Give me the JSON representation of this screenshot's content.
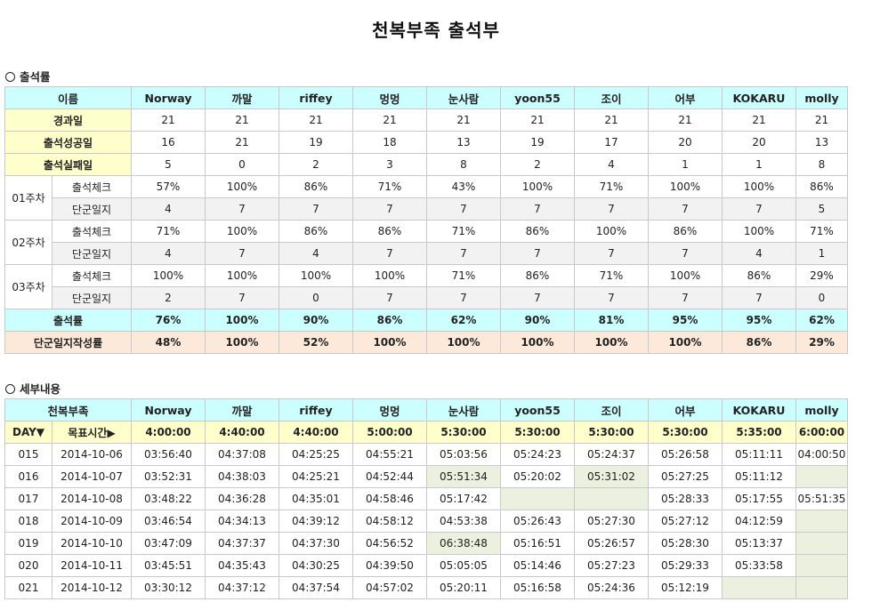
{
  "title": "천복부족 출석부",
  "section1": "출석률",
  "section2": "세부내용",
  "members": [
    "Norway",
    "까말",
    "riffey",
    "멍멍",
    "눈사람",
    "yoon55",
    "조이",
    "어부",
    "KOKARU",
    "molly"
  ],
  "summary": {
    "name_header": "이름",
    "rows_top": [
      {
        "label": "경과일",
        "values": [
          "21",
          "21",
          "21",
          "21",
          "21",
          "21",
          "21",
          "21",
          "21",
          "21"
        ]
      },
      {
        "label": "출석성공일",
        "values": [
          "16",
          "21",
          "19",
          "18",
          "13",
          "19",
          "17",
          "20",
          "20",
          "13"
        ]
      },
      {
        "label": "출석실패일",
        "values": [
          "5",
          "0",
          "2",
          "3",
          "8",
          "2",
          "4",
          "1",
          "1",
          "8"
        ]
      }
    ],
    "weeks": [
      {
        "label": "01주차",
        "check_label": "출석체크",
        "check": [
          "57%",
          "100%",
          "86%",
          "71%",
          "43%",
          "100%",
          "71%",
          "100%",
          "100%",
          "86%"
        ],
        "log_label": "단군일지",
        "log": [
          "4",
          "7",
          "7",
          "7",
          "7",
          "7",
          "7",
          "7",
          "7",
          "5"
        ]
      },
      {
        "label": "02주차",
        "check_label": "출석체크",
        "check": [
          "71%",
          "100%",
          "86%",
          "86%",
          "71%",
          "86%",
          "100%",
          "86%",
          "100%",
          "71%"
        ],
        "log_label": "단군일지",
        "log": [
          "4",
          "7",
          "4",
          "7",
          "7",
          "7",
          "7",
          "7",
          "4",
          "1"
        ]
      },
      {
        "label": "03주차",
        "check_label": "출석체크",
        "check": [
          "100%",
          "100%",
          "100%",
          "100%",
          "71%",
          "86%",
          "71%",
          "100%",
          "86%",
          "29%"
        ],
        "log_label": "단군일지",
        "log": [
          "2",
          "7",
          "0",
          "7",
          "7",
          "7",
          "7",
          "7",
          "7",
          "0"
        ]
      }
    ],
    "rate": {
      "label": "출석률",
      "values": [
        "76%",
        "100%",
        "90%",
        "86%",
        "62%",
        "90%",
        "81%",
        "95%",
        "95%",
        "62%"
      ]
    },
    "log_rate": {
      "label": "단군일지작성률",
      "values": [
        "48%",
        "100%",
        "52%",
        "100%",
        "100%",
        "100%",
        "100%",
        "100%",
        "86%",
        "29%"
      ]
    }
  },
  "detail": {
    "tribe_header": "천복부족",
    "day_header": "DAY▼",
    "target_header": "목표시간▶",
    "targets": [
      "4:00:00",
      "4:40:00",
      "4:40:00",
      "5:00:00",
      "5:30:00",
      "5:30:00",
      "5:30:00",
      "5:30:00",
      "5:35:00",
      "6:00:00"
    ],
    "rows": [
      {
        "day": "015",
        "date": "2014-10-06",
        "times": [
          "03:56:40",
          "04:37:08",
          "04:25:25",
          "04:55:21",
          "05:03:56",
          "05:24:23",
          "05:24:37",
          "05:26:58",
          "05:11:11",
          "04:00:50"
        ],
        "hl": []
      },
      {
        "day": "016",
        "date": "2014-10-07",
        "times": [
          "03:52:31",
          "04:38:03",
          "04:25:21",
          "04:52:44",
          "05:51:34",
          "05:20:02",
          "05:31:02",
          "05:27:25",
          "05:11:12",
          ""
        ],
        "hl": [
          4,
          6,
          9
        ]
      },
      {
        "day": "017",
        "date": "2014-10-08",
        "times": [
          "03:48:22",
          "04:36:28",
          "04:35:01",
          "04:58:46",
          "05:17:42",
          "",
          "",
          "05:28:33",
          "05:17:55",
          "05:51:35"
        ],
        "hl": [
          5,
          6
        ]
      },
      {
        "day": "018",
        "date": "2014-10-09",
        "times": [
          "03:46:54",
          "04:34:13",
          "04:39:12",
          "04:58:12",
          "04:53:38",
          "05:26:43",
          "05:27:30",
          "05:27:12",
          "04:12:59",
          ""
        ],
        "hl": [
          9
        ]
      },
      {
        "day": "019",
        "date": "2014-10-10",
        "times": [
          "03:47:09",
          "04:37:37",
          "04:37:30",
          "04:56:52",
          "06:38:48",
          "05:16:51",
          "05:26:57",
          "05:28:30",
          "05:13:37",
          ""
        ],
        "hl": [
          4,
          9
        ]
      },
      {
        "day": "020",
        "date": "2014-10-11",
        "times": [
          "03:45:51",
          "04:35:43",
          "04:30:25",
          "04:39:50",
          "05:05:05",
          "05:14:46",
          "05:27:23",
          "05:29:33",
          "05:33:58",
          ""
        ],
        "hl": [
          9
        ]
      },
      {
        "day": "021",
        "date": "2014-10-12",
        "times": [
          "03:30:12",
          "04:37:12",
          "04:37:54",
          "04:57:02",
          "05:20:11",
          "05:16:58",
          "05:24:36",
          "05:12:19",
          "",
          ""
        ],
        "hl": [
          8,
          9
        ]
      }
    ]
  }
}
